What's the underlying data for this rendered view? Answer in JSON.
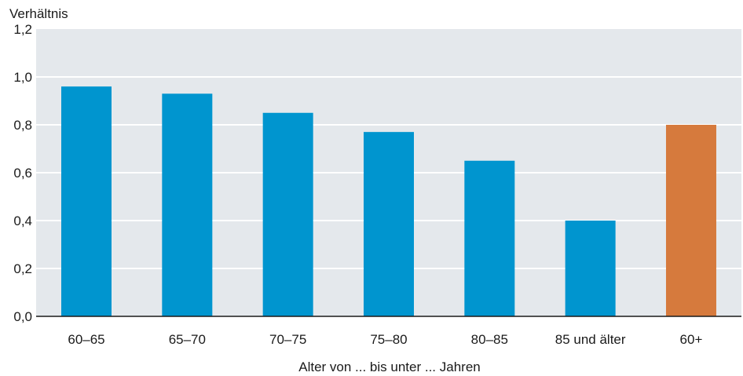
{
  "chart_data": {
    "type": "bar",
    "ylabel": "Verhältnis",
    "xlabel": "Alter von ... bis unter ... Jahren",
    "categories": [
      "60–65",
      "65–70",
      "70–75",
      "75–80",
      "80–85",
      "85 und älter",
      "60+"
    ],
    "values": [
      0.96,
      0.93,
      0.85,
      0.77,
      0.65,
      0.4,
      0.8
    ],
    "ylim": [
      0,
      1.2
    ],
    "yticks": [
      0,
      0.2,
      0.4,
      0.6,
      0.8,
      1.0,
      1.2
    ],
    "ytick_labels": [
      "0,0",
      "0,2",
      "0,4",
      "0,6",
      "0,8",
      "1,0",
      "1,2"
    ],
    "grid": true,
    "colors": {
      "bar": "#0095cf",
      "highlight_bar": "#d67a3d",
      "plot_background": "#e4e8ec",
      "grid": "#ffffff",
      "axis": "#1a1a1a"
    },
    "highlight_index": 6
  }
}
